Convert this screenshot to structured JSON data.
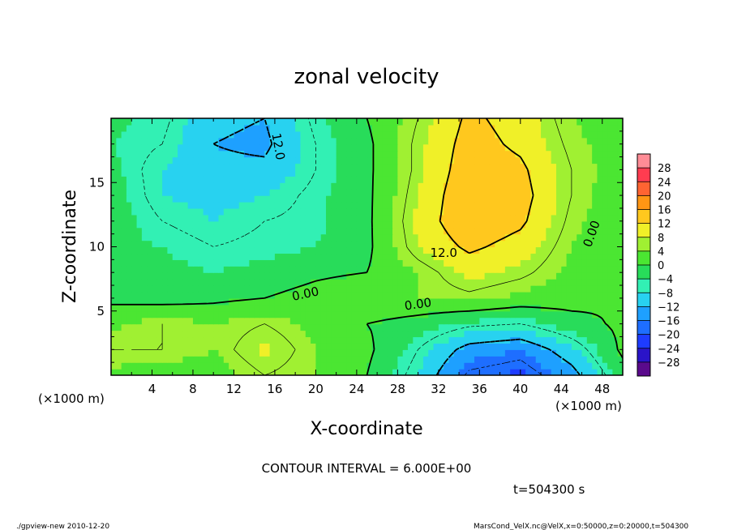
{
  "chart_data": {
    "type": "heatmap",
    "title": "zonal velocity",
    "xlabel": "X-coordinate",
    "ylabel": "Z-coordinate",
    "x_unit_left": "(×1000 m)",
    "x_unit_right": "(×1000 m)",
    "xlim": [
      0,
      50
    ],
    "ylim": [
      0,
      20
    ],
    "x_ticks": [
      4,
      8,
      12,
      16,
      20,
      24,
      28,
      32,
      36,
      40,
      44,
      48
    ],
    "y_ticks": [
      5,
      10,
      15
    ],
    "contour_interval_text": "CONTOUR INTERVAL = 6.000E+00",
    "time_text": "t=504300 s",
    "footer_left": "./gpview-new   2010-12-20",
    "footer_right": "MarsCond_VelX.nc@VelX,x=0:50000,z=0:20000,t=504300",
    "contour_labels": [
      {
        "text": "12.0",
        "x": 16.3,
        "y": 17.8,
        "angle": 80
      },
      {
        "text": "12.0",
        "x": 32.5,
        "y": 9.5,
        "angle": 0
      },
      {
        "text": "0.00",
        "x": 19.0,
        "y": 6.3,
        "angle": -12
      },
      {
        "text": "0.00",
        "x": 30.0,
        "y": 5.5,
        "angle": -8
      },
      {
        "text": "0.00",
        "x": 47.0,
        "y": 11.0,
        "angle": -70
      }
    ],
    "colorbar": {
      "levels": [
        -28,
        -24,
        -20,
        -16,
        -12,
        -8,
        -4,
        0,
        4,
        8,
        12,
        16,
        20,
        24,
        28
      ],
      "colors": [
        "#5a0a8c",
        "#2a14c8",
        "#1e3cff",
        "#1e6eff",
        "#1ea0ff",
        "#28d2f0",
        "#32f0b4",
        "#28dc5a",
        "#4be632",
        "#a0f032",
        "#f0f028",
        "#ffc81e",
        "#ff9614",
        "#ff6432",
        "#ff3c50",
        "#ff8c96"
      ]
    },
    "field": {
      "nx": 11,
      "ny": 11,
      "x0": 0,
      "dx": 5,
      "y0": 0,
      "dy": 2,
      "values": [
        [
          3,
          2,
          2,
          6,
          4,
          0,
          -8,
          -19,
          -21,
          -14,
          -2
        ],
        [
          6,
          6,
          4,
          9,
          4,
          1,
          -6,
          -14,
          -16,
          -9,
          1
        ],
        [
          3,
          6,
          4,
          6,
          3,
          0,
          -2,
          -5,
          -6,
          -2,
          1
        ],
        [
          -1,
          -2,
          -1,
          0,
          2,
          4,
          4,
          5,
          3,
          2,
          0
        ],
        [
          -4,
          -3,
          -4,
          -3,
          -1,
          0,
          4,
          9,
          7,
          3,
          0
        ],
        [
          -3,
          -4,
          -6,
          -5,
          -4,
          -1,
          8,
          13,
          10,
          4,
          0
        ],
        [
          -2,
          -6,
          -8,
          -6,
          -5,
          -1,
          9,
          16,
          13,
          5,
          1
        ],
        [
          -2,
          -8,
          -9,
          -8,
          -5,
          -1,
          8,
          16,
          14,
          6,
          1
        ],
        [
          -3,
          -8,
          -11,
          -11,
          -6,
          -1,
          7,
          15,
          13,
          6,
          2
        ],
        [
          -4,
          -6,
          -12,
          -13,
          -6,
          -1,
          7,
          14,
          11,
          5,
          2
        ],
        [
          -3,
          -5,
          -11,
          -12,
          -5,
          0,
          6,
          13,
          10,
          4,
          2
        ]
      ]
    }
  }
}
